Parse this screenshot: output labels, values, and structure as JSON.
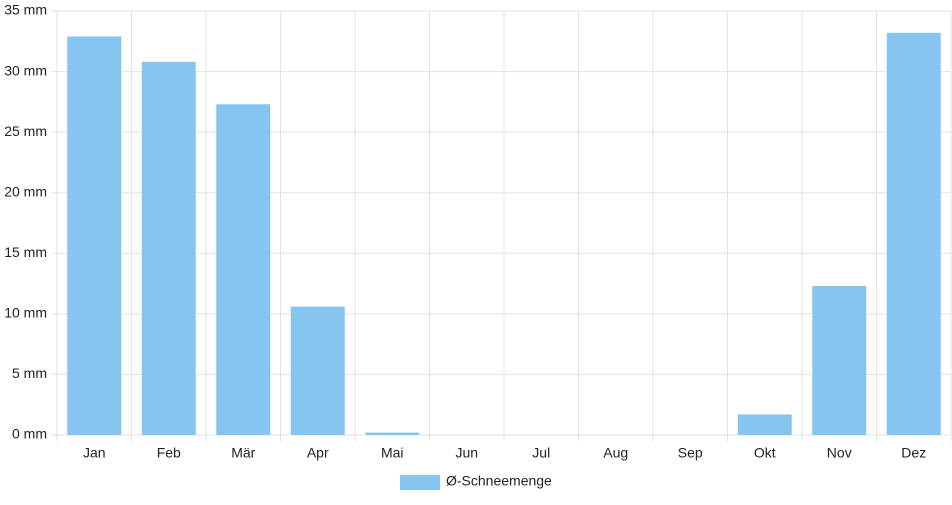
{
  "chart_data": {
    "type": "bar",
    "categories": [
      "Jan",
      "Feb",
      "Mär",
      "Apr",
      "Mai",
      "Jun",
      "Jul",
      "Aug",
      "Sep",
      "Okt",
      "Nov",
      "Dez"
    ],
    "series": [
      {
        "name": "Ø-Schneemenge",
        "color": "#87c5f1",
        "values": [
          32.9,
          30.8,
          27.3,
          10.6,
          0.2,
          0,
          0,
          0,
          0,
          1.7,
          12.3,
          33.2
        ]
      }
    ],
    "ylim": [
      0,
      35
    ],
    "yticks": [
      {
        "value": 0,
        "label": "0 mm"
      },
      {
        "value": 5,
        "label": "5 mm"
      },
      {
        "value": 10,
        "label": "10 mm"
      },
      {
        "value": 15,
        "label": "15 mm"
      },
      {
        "value": 20,
        "label": "20 mm"
      },
      {
        "value": 25,
        "label": "25 mm"
      },
      {
        "value": 30,
        "label": "30 mm"
      },
      {
        "value": 35,
        "label": "35 mm"
      }
    ],
    "grid": true,
    "legend": "bottom"
  }
}
